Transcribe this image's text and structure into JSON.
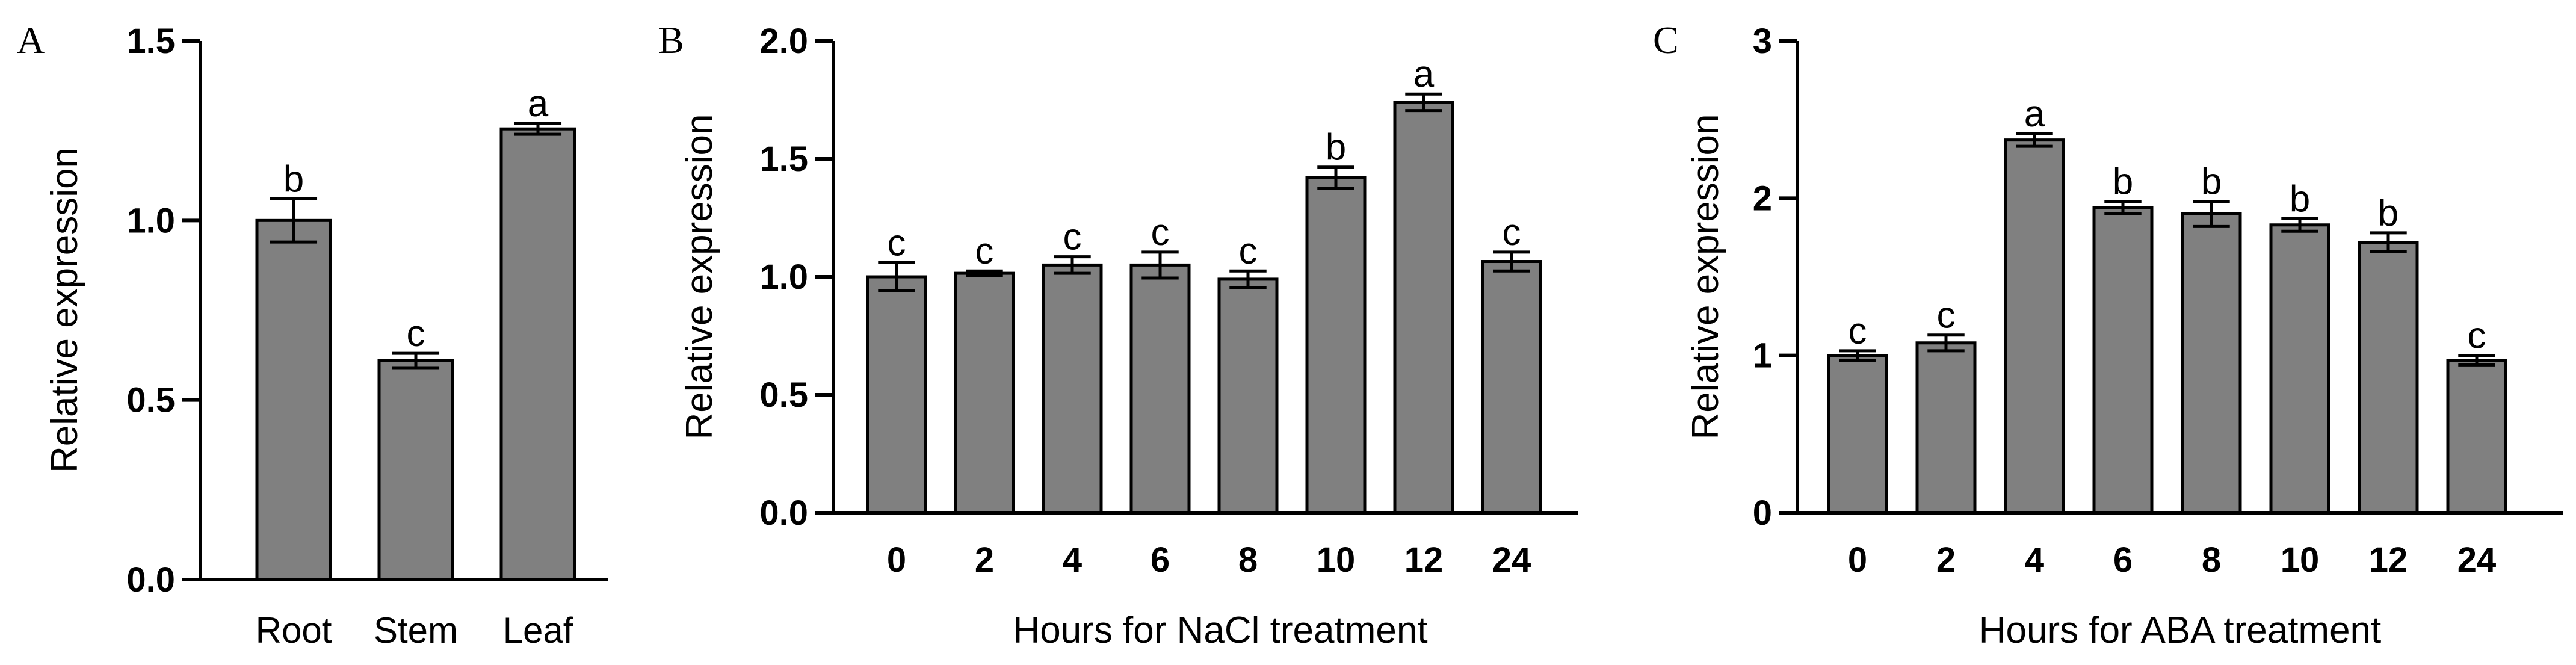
{
  "chart_data": [
    {
      "panel": "A",
      "type": "bar",
      "categories": [
        "Root",
        "Stem",
        "Leaf"
      ],
      "values": [
        1.0,
        0.61,
        1.255
      ],
      "errors": [
        0.06,
        0.02,
        0.015
      ],
      "significance": [
        "b",
        "c",
        "a"
      ],
      "ylabel": "Relative expression",
      "xlabel": "",
      "ylim": [
        0,
        1.5
      ],
      "yticks": [
        "0.0",
        "0.5",
        "1.0",
        "1.5"
      ],
      "bar_color": "#808080"
    },
    {
      "panel": "B",
      "type": "bar",
      "categories": [
        "0",
        "2",
        "4",
        "6",
        "8",
        "10",
        "12",
        "24"
      ],
      "values": [
        1.0,
        1.015,
        1.05,
        1.05,
        0.99,
        1.42,
        1.74,
        1.065
      ],
      "errors": [
        0.06,
        0.01,
        0.035,
        0.055,
        0.035,
        0.045,
        0.035,
        0.04
      ],
      "significance": [
        "c",
        "c",
        "c",
        "c",
        "c",
        "b",
        "a",
        "c"
      ],
      "ylabel": "Relative expression",
      "xlabel": "Hours for NaCl treatment",
      "ylim": [
        0,
        2.0
      ],
      "yticks": [
        "0.0",
        "0.5",
        "1.0",
        "1.5",
        "2.0"
      ],
      "bar_color": "#808080"
    },
    {
      "panel": "C",
      "type": "bar",
      "categories": [
        "0",
        "2",
        "4",
        "6",
        "8",
        "10",
        "12",
        "24"
      ],
      "values": [
        1.0,
        1.08,
        2.37,
        1.94,
        1.9,
        1.83,
        1.72,
        0.97
      ],
      "errors": [
        0.03,
        0.05,
        0.04,
        0.04,
        0.08,
        0.04,
        0.06,
        0.03
      ],
      "significance": [
        "c",
        "c",
        "a",
        "b",
        "b",
        "b",
        "b",
        "c"
      ],
      "ylabel": "Relative expression",
      "xlabel": "Hours for ABA treatment",
      "ylim": [
        0,
        3
      ],
      "yticks": [
        "0",
        "1",
        "2",
        "3"
      ],
      "bar_color": "#808080"
    }
  ]
}
